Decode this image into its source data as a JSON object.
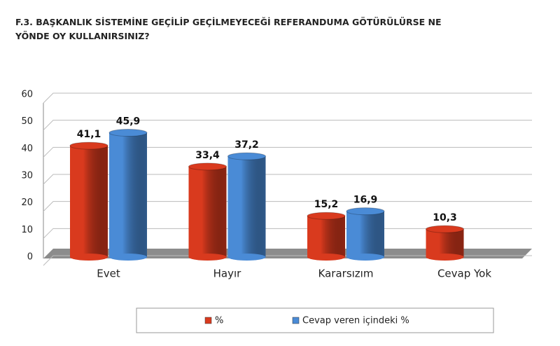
{
  "chart_data": {
    "type": "bar",
    "title": "F.3. BAŞKANLIK SİSTEMİNE GEÇİLİP GEÇİLMEYECEĞİ  REFERANDUMA GÖTÜRÜLÜRSE NE YÖNDE OY KULLANIRSINIZ?",
    "categories": [
      "Evet",
      "Hayır",
      "Kararsızım",
      "Cevap Yok"
    ],
    "series": [
      {
        "name": "%",
        "color": "#d93a1e",
        "values": [
          41.1,
          33.4,
          15.2,
          10.3
        ],
        "value_labels": [
          "41,1",
          "33,4",
          "15,2",
          "10,3"
        ]
      },
      {
        "name": "Cevap veren içindeki %",
        "color": "#4a8bd6",
        "values": [
          45.9,
          37.2,
          16.9,
          null
        ],
        "value_labels": [
          "45,9",
          "37,2",
          "16,9",
          null
        ]
      }
    ],
    "ylim": [
      0,
      60
    ],
    "yticks": [
      0,
      10,
      20,
      30,
      40,
      50,
      60
    ],
    "grid": true
  }
}
